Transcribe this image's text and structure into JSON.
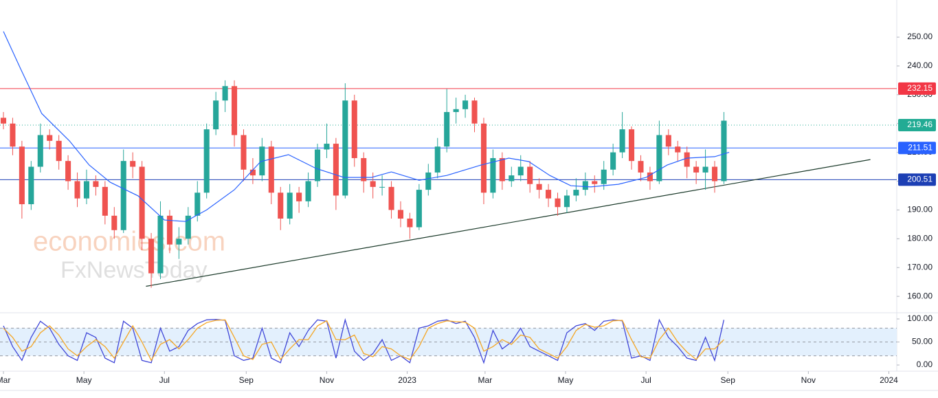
{
  "chart_data": {
    "type": "candlestick",
    "up_color": "#26a69a",
    "down_color": "#ef5350",
    "x": [
      0,
      7,
      14,
      21,
      28,
      35,
      42,
      49,
      56,
      63,
      70,
      77,
      84,
      91,
      98,
      105,
      112,
      119,
      126,
      133,
      140,
      147,
      154,
      161,
      168,
      175,
      182,
      189,
      196,
      203,
      210,
      217,
      224,
      231,
      238,
      245,
      252,
      259,
      266,
      273,
      280,
      287,
      294,
      301,
      308,
      315,
      322,
      329,
      336,
      343,
      350,
      357,
      364,
      371,
      378,
      385,
      392,
      399,
      406,
      413,
      420,
      427,
      434,
      441,
      448,
      455,
      462,
      469,
      476,
      483,
      490,
      497,
      504,
      511,
      518,
      525,
      532,
      539,
      546
    ],
    "open": [
      222,
      220,
      212,
      192,
      205,
      216,
      214,
      207,
      200,
      194,
      200,
      198,
      188,
      183,
      207,
      205,
      180,
      168,
      188,
      178,
      180,
      188,
      196,
      218,
      228,
      233,
      216,
      204,
      202,
      212,
      196,
      187,
      196,
      193,
      200,
      211,
      213,
      195,
      228,
      208,
      200,
      198,
      198,
      190,
      187,
      184,
      197,
      203,
      212,
      224,
      225,
      228,
      220,
      196,
      208,
      200,
      202,
      205,
      199,
      197,
      194,
      191,
      195,
      197,
      200,
      199,
      204,
      210,
      218,
      207,
      203,
      200,
      216,
      212,
      210,
      205,
      203,
      205,
      200
    ],
    "high": [
      224,
      222,
      214,
      207,
      220,
      218,
      216,
      209,
      203,
      204,
      202,
      200,
      191,
      211,
      210,
      207,
      182,
      193,
      190,
      184,
      191,
      200,
      220,
      231,
      235,
      235,
      218,
      208,
      215,
      214,
      198,
      199,
      198,
      203,
      213,
      220,
      215,
      234,
      230,
      210,
      203,
      202,
      200,
      193,
      189,
      199,
      206,
      215,
      232,
      229,
      230,
      229,
      222,
      211,
      210,
      205,
      209,
      207,
      201,
      199,
      196,
      197,
      201,
      203,
      202,
      207,
      213,
      224,
      219,
      209,
      205,
      221,
      218,
      214,
      212,
      207,
      211,
      207,
      224
    ],
    "low": [
      218,
      209,
      187,
      190,
      203,
      211,
      204,
      197,
      191,
      192,
      195,
      185,
      180,
      182,
      201,
      176,
      163,
      166,
      175,
      173,
      178,
      186,
      194,
      216,
      224,
      212,
      200,
      199,
      200,
      192,
      183,
      185,
      189,
      191,
      198,
      208,
      190,
      194,
      205,
      196,
      194,
      195,
      187,
      184,
      180,
      183,
      195,
      201,
      210,
      220,
      222,
      217,
      192,
      194,
      197,
      198,
      200,
      196,
      194,
      191,
      188,
      189,
      193,
      195,
      196,
      197,
      202,
      208,
      204,
      200,
      197,
      199,
      209,
      207,
      201,
      199,
      197,
      196,
      199
    ],
    "close": [
      220,
      212,
      192,
      205,
      216,
      214,
      207,
      200,
      194,
      200,
      198,
      188,
      183,
      207,
      205,
      180,
      168,
      188,
      178,
      180,
      188,
      196,
      218,
      228,
      233,
      216,
      204,
      202,
      212,
      196,
      187,
      196,
      193,
      200,
      211,
      213,
      195,
      228,
      208,
      200,
      198,
      198,
      190,
      187,
      184,
      197,
      203,
      212,
      224,
      225,
      228,
      220,
      196,
      208,
      200,
      202,
      205,
      199,
      197,
      194,
      191,
      195,
      197,
      200,
      199,
      204,
      210,
      218,
      207,
      203,
      200,
      216,
      212,
      210,
      205,
      203,
      205,
      200,
      221
    ],
    "xlim": [
      -2.6,
      677
    ],
    "xticks": [
      {
        "value": 0,
        "label": "Mar"
      },
      {
        "value": 61,
        "label": "May"
      },
      {
        "value": 122,
        "label": "Jul"
      },
      {
        "value": 184,
        "label": "Sep"
      },
      {
        "value": 245,
        "label": "Nov"
      },
      {
        "value": 306,
        "label": "2023"
      },
      {
        "value": 365,
        "label": "Mar"
      },
      {
        "value": 426,
        "label": "May"
      },
      {
        "value": 487,
        "label": "Jul"
      },
      {
        "value": 549,
        "label": "Sep"
      },
      {
        "value": 610,
        "label": "Nov"
      },
      {
        "value": 671,
        "label": "2024"
      }
    ],
    "ylim": [
      154.3,
      262.9
    ],
    "yticks": [
      {
        "value": 160,
        "label": "160.00"
      },
      {
        "value": 170,
        "label": "170.00"
      },
      {
        "value": 180,
        "label": "180.00"
      },
      {
        "value": 190,
        "label": "190.00"
      },
      {
        "value": 200,
        "label": "200.00"
      },
      {
        "value": 210,
        "label": "210.00"
      },
      {
        "value": 220,
        "label": "220.00"
      },
      {
        "value": 230,
        "label": "230.00"
      },
      {
        "value": 240,
        "label": "240.00"
      },
      {
        "value": 250,
        "label": "250.00"
      }
    ],
    "moving_average": {
      "color": "#2962ff",
      "x": [
        0,
        13,
        29,
        50,
        65,
        81,
        102,
        122,
        138,
        154,
        175,
        195,
        216,
        237,
        258,
        279,
        294,
        315,
        336,
        362,
        383,
        398,
        414,
        430,
        445,
        466,
        487,
        503,
        518,
        539,
        550
      ],
      "values": [
        252,
        239,
        223.5,
        214,
        205.6,
        199.6,
        194.9,
        186.5,
        186,
        190,
        197,
        206.8,
        209.2,
        204.4,
        201.3,
        201.3,
        203.2,
        200.3,
        202,
        205.6,
        208,
        206.8,
        202,
        198.4,
        198,
        198.9,
        201.3,
        205.6,
        208,
        208.5,
        210
      ]
    },
    "levels": [
      {
        "value": 232.15,
        "color": "#f23645",
        "style": "solid"
      },
      {
        "value": 219.46,
        "color": "#22ab94",
        "style": "dotted"
      },
      {
        "value": 211.51,
        "color": "#2962ff",
        "style": "solid"
      },
      {
        "value": 200.51,
        "color": "#1c3fb4",
        "style": "solid"
      }
    ],
    "trendline": {
      "color": "#1b3a2a",
      "x": [
        108,
        657
      ],
      "values": [
        163.5,
        207.5
      ]
    },
    "oscillator": {
      "type": "line",
      "ylim": [
        -13.4,
        113.4
      ],
      "yticks": [
        {
          "value": 0,
          "label": "0.00"
        },
        {
          "value": 50,
          "label": "50.00"
        },
        {
          "value": 100,
          "label": "100.00"
        }
      ],
      "band": [
        20,
        80
      ],
      "band_color": "#e3f0fd",
      "series": [
        {
          "color": "#3f46d8",
          "values": [
            85,
            40,
            10,
            60,
            95,
            80,
            45,
            20,
            10,
            70,
            60,
            15,
            5,
            95,
            80,
            10,
            5,
            80,
            30,
            40,
            75,
            90,
            98,
            99,
            97,
            20,
            10,
            15,
            80,
            15,
            5,
            70,
            40,
            75,
            98,
            95,
            15,
            98,
            30,
            10,
            25,
            55,
            10,
            20,
            5,
            80,
            85,
            95,
            98,
            90,
            95,
            60,
            5,
            75,
            35,
            50,
            80,
            40,
            30,
            20,
            10,
            70,
            85,
            90,
            75,
            95,
            98,
            96,
            15,
            20,
            10,
            98,
            60,
            40,
            15,
            10,
            60,
            10,
            98
          ]
        },
        {
          "color": "#f5a623",
          "values": [
            80,
            60,
            30,
            40,
            70,
            85,
            65,
            35,
            20,
            40,
            55,
            40,
            15,
            50,
            85,
            50,
            10,
            45,
            55,
            35,
            55,
            80,
            92,
            97,
            98,
            60,
            20,
            12,
            45,
            50,
            12,
            35,
            55,
            55,
            85,
            96,
            55,
            55,
            65,
            25,
            18,
            40,
            35,
            20,
            12,
            40,
            80,
            90,
            96,
            94,
            93,
            80,
            30,
            40,
            55,
            45,
            65,
            60,
            35,
            25,
            15,
            40,
            75,
            88,
            82,
            85,
            96,
            97,
            55,
            18,
            15,
            55,
            80,
            50,
            28,
            12,
            35,
            35,
            55
          ]
        }
      ]
    }
  },
  "watermark": [
    "economies.com",
    "FxNewsToday"
  ]
}
